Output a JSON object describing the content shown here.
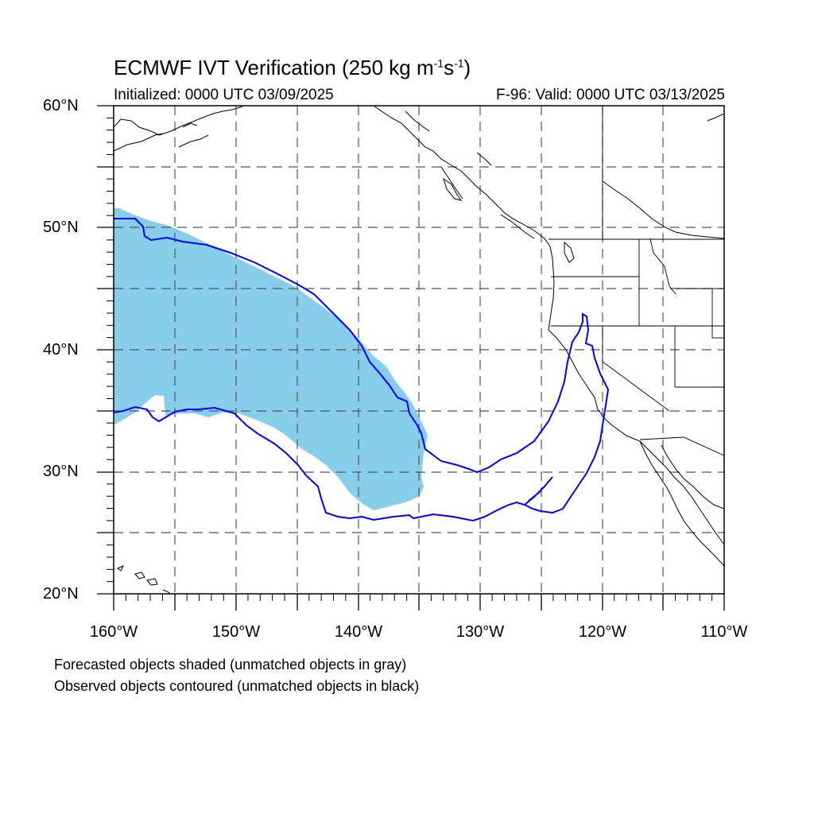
{
  "title_main": "ECMWF IVT Verification (250 kg m",
  "title_sup1": "-1",
  "title_mid": "s",
  "title_sup2": "-1",
  "title_end": ")",
  "initialized": "Initialized: 0000 UTC 03/09/2025",
  "valid": "F-96: Valid: 0000 UTC 03/13/2025",
  "lat_labels": [
    "60°N",
    "50°N",
    "40°N",
    "30°N",
    "20°N"
  ],
  "lon_labels": [
    "160°W",
    "150°W",
    "140°W",
    "130°W",
    "120°W",
    "110°W"
  ],
  "footnote_1": "Forecasted objects shaded (unmatched objects in gray)",
  "footnote_2": "Observed objects contoured (unmatched objects in black)",
  "colors": {
    "forecast_fill": "#87ceeb",
    "observed_contour": "#0000ff",
    "coastline": "#000000",
    "grid": "#555555"
  },
  "map_extent": {
    "lon": [
      -160,
      -110
    ],
    "lat": [
      20,
      60
    ]
  },
  "gridlines": {
    "lon_step": 5,
    "lat_step": 5,
    "style": "dashed"
  }
}
